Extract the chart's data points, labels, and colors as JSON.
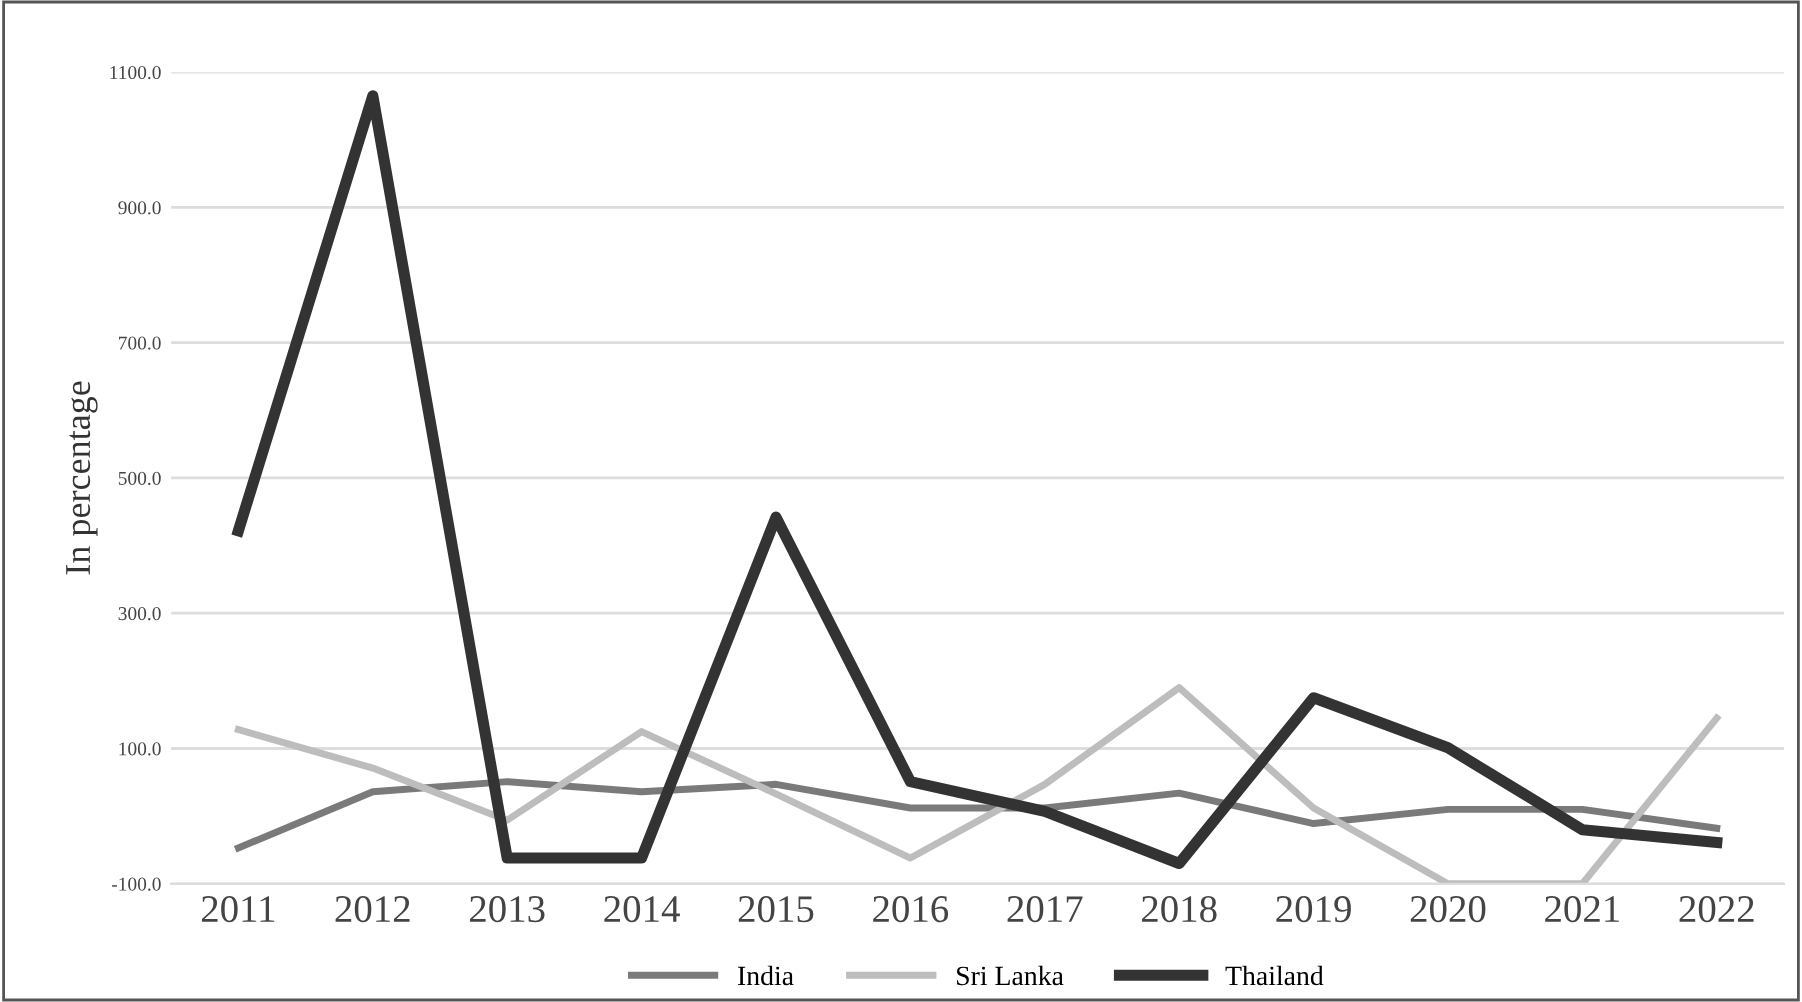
{
  "chart_data": {
    "type": "line",
    "ylabel": "In percentage",
    "categories": [
      "2011",
      "2012",
      "2013",
      "2014",
      "2015",
      "2016",
      "2017",
      "2018",
      "2019",
      "2020",
      "2021",
      "2022"
    ],
    "series": [
      {
        "name": "India",
        "color": "#7a7a7a",
        "values": [
          -47,
          36,
          51,
          36,
          47,
          12,
          12,
          34,
          -11,
          10,
          10,
          -18
        ]
      },
      {
        "name": "Sri Lanka",
        "color": "#bdbdbd",
        "values": [
          128,
          71,
          -6,
          125,
          33,
          -62,
          47,
          190,
          12,
          -100,
          -100,
          145
        ]
      },
      {
        "name": "Thailand",
        "color": "#333333",
        "values": [
          422,
          1065,
          -62,
          -62,
          442,
          51,
          7,
          -70,
          175,
          101,
          -20,
          -39
        ]
      }
    ],
    "ylim": [
      -100,
      1100
    ],
    "yticks": [
      {
        "value": -100,
        "label": "-100.0"
      },
      {
        "value": 100,
        "label": "100.0"
      },
      {
        "value": 300,
        "label": "300.0"
      },
      {
        "value": 500,
        "label": "500.0"
      },
      {
        "value": 700,
        "label": "700.0"
      },
      {
        "value": 900,
        "label": "900.0"
      },
      {
        "value": 1100,
        "label": "1100.0"
      }
    ],
    "grid": "y",
    "legend": "bottom",
    "marker": "none",
    "line_style": "solid"
  }
}
